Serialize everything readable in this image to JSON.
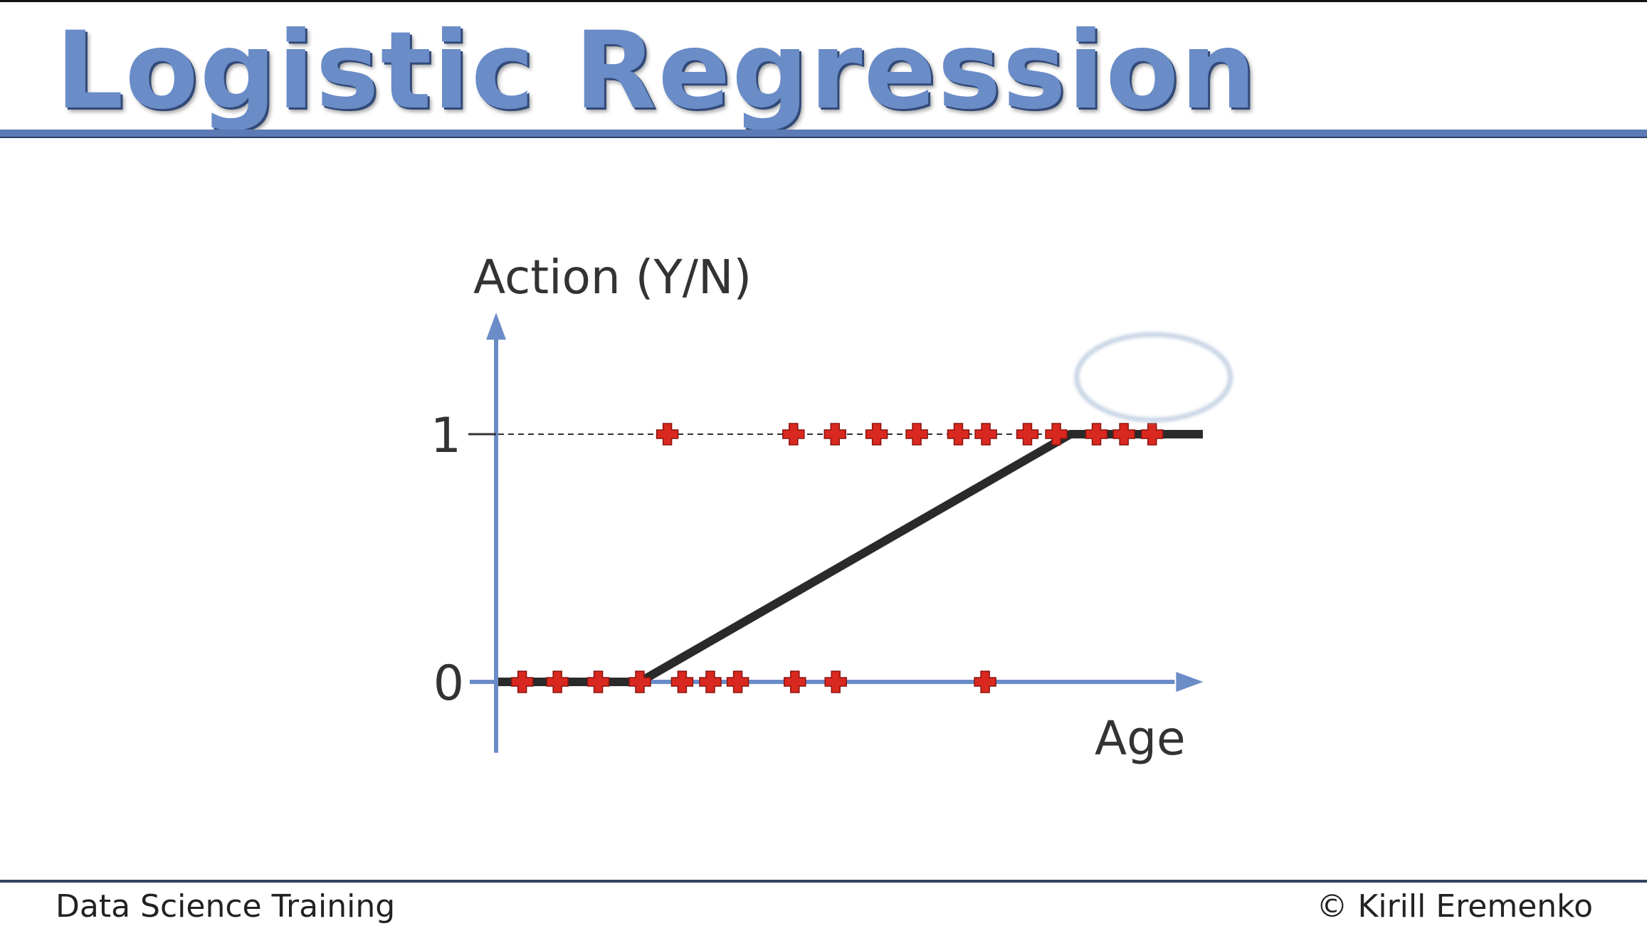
{
  "slide": {
    "title": "Logistic Regression",
    "footer_left": "Data Science Training",
    "footer_right": "© Kirill Eremenko"
  },
  "colors": {
    "title": "#6a8cc7",
    "axis": "#6a8cc7",
    "marker": "#d9281f",
    "line": "#2a2a2a",
    "highlight": "#c9d6e6"
  },
  "chart_data": {
    "type": "scatter",
    "ylabel": "Action (Y/N)",
    "xlabel": "Age",
    "yticks": [
      {
        "value": 0,
        "label": "0"
      },
      {
        "value": 1,
        "label": "1"
      }
    ],
    "xlim": [
      0,
      100
    ],
    "ylim": [
      -0.2,
      1.6
    ],
    "series": [
      {
        "values_x": [
          3.4,
          8.4,
          14.2,
          20.1,
          26.1,
          30.1,
          34.0,
          42.1,
          47.9,
          69.1
        ],
        "values_y": [
          0,
          0,
          0,
          0,
          0,
          0,
          0,
          0,
          0,
          0
        ]
      },
      {
        "values_x": [
          24.0,
          41.9,
          47.8,
          53.7,
          59.4,
          65.3,
          69.2,
          75.1,
          79.2,
          84.9,
          88.8,
          92.8
        ],
        "values_y": [
          1,
          1,
          1,
          1,
          1,
          1,
          1,
          1,
          1,
          1,
          1,
          1
        ]
      }
    ],
    "fit_line": {
      "x": [
        0,
        20.1,
        81.2,
        100
      ],
      "y": [
        0,
        0,
        1,
        1
      ]
    },
    "dashed_reference": {
      "y": 1
    },
    "annotation": {
      "type": "ellipse",
      "x": 93,
      "y": 1.23
    }
  }
}
